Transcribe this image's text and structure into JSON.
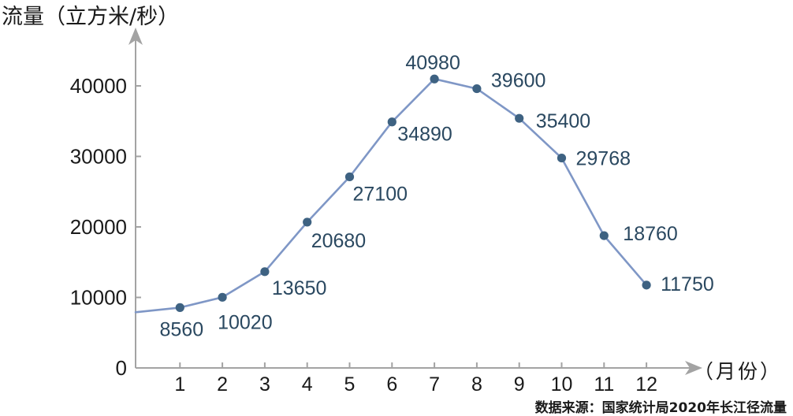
{
  "chart_data": {
    "type": "line",
    "ylabel": "流量（立方米/秒）",
    "xlabel": "（月份）",
    "categories": [
      "1",
      "2",
      "3",
      "4",
      "5",
      "6",
      "7",
      "8",
      "9",
      "10",
      "11",
      "12"
    ],
    "values": [
      8560,
      10020,
      13650,
      20680,
      27100,
      34890,
      40980,
      39600,
      35400,
      29768,
      18760,
      11750
    ],
    "yticks": [
      0,
      10000,
      20000,
      30000,
      40000
    ],
    "ylim": [
      0,
      48000
    ],
    "xlim": [
      0,
      13.3
    ],
    "grid": false,
    "legend": false,
    "markers": true,
    "data_labels": true,
    "source": "数据来源：国家统计局2020年长江径流量"
  },
  "colors": {
    "line": "#7f97c6",
    "marker": "#3e6282",
    "data_label": "#2a4860",
    "axis": "#a3a3a3",
    "text": "#1a1a1a"
  }
}
